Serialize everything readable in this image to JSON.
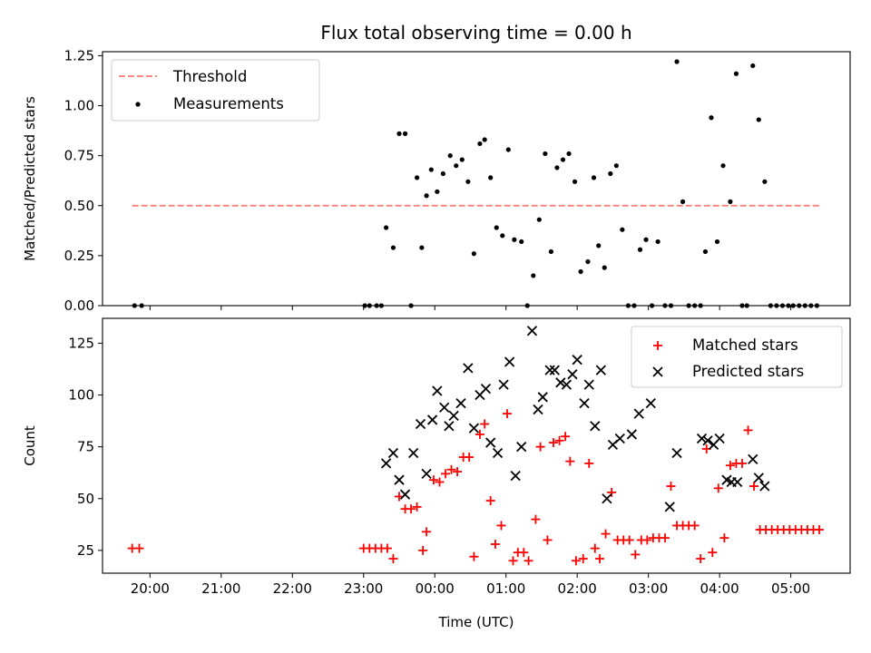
{
  "chart_data": [
    {
      "type": "scatter",
      "title": "Flux total observing time = 0.00 h",
      "xlabel": "",
      "ylabel": "Matched/Predicted stars",
      "ylim": [
        0,
        1.27
      ],
      "yticks": [
        0.0,
        0.25,
        0.5,
        0.75,
        1.0,
        1.25
      ],
      "ytick_labels": [
        "0.00",
        "0.25",
        "0.50",
        "0.75",
        "1.00",
        "1.25"
      ],
      "grid": false,
      "legend": {
        "placement": "upper left",
        "entries": [
          "Threshold",
          "Measurements"
        ]
      },
      "threshold": {
        "name": "Threshold",
        "y": 0.5,
        "x_from": "19:45",
        "x_to": "05:25",
        "color": "#ff7777",
        "style": "dashed"
      },
      "series": [
        {
          "name": "Measurements",
          "color": "#000000",
          "marker": "dot",
          "points": [
            [
              "19:47",
              0
            ],
            [
              "19:53",
              0
            ],
            [
              "23:01",
              0
            ],
            [
              "23:05",
              0
            ],
            [
              "23:11",
              0
            ],
            [
              "23:15",
              0
            ],
            [
              "23:19",
              0.39
            ],
            [
              "23:25",
              0.29
            ],
            [
              "23:30",
              0.86
            ],
            [
              "23:35",
              0.86
            ],
            [
              "23:40",
              0
            ],
            [
              "23:45",
              0.64
            ],
            [
              "23:49",
              0.29
            ],
            [
              "23:53",
              0.55
            ],
            [
              "23:57",
              0.68
            ],
            [
              "00:02",
              0.57
            ],
            [
              "00:07",
              0.66
            ],
            [
              "00:13",
              0.75
            ],
            [
              "00:18",
              0.7
            ],
            [
              "00:23",
              0.73
            ],
            [
              "00:28",
              0.62
            ],
            [
              "00:33",
              0.26
            ],
            [
              "00:38",
              0.81
            ],
            [
              "00:42",
              0.83
            ],
            [
              "00:47",
              0.64
            ],
            [
              "00:52",
              0.39
            ],
            [
              "00:57",
              0.35
            ],
            [
              "01:02",
              0.78
            ],
            [
              "01:07",
              0.33
            ],
            [
              "01:13",
              0.32
            ],
            [
              "01:18",
              0
            ],
            [
              "01:23",
              0.15
            ],
            [
              "01:28",
              0.43
            ],
            [
              "01:33",
              0.76
            ],
            [
              "01:38",
              0.27
            ],
            [
              "01:43",
              0.69
            ],
            [
              "01:48",
              0.73
            ],
            [
              "01:53",
              0.76
            ],
            [
              "01:58",
              0.62
            ],
            [
              "02:03",
              0.17
            ],
            [
              "02:09",
              0.22
            ],
            [
              "02:14",
              0.64
            ],
            [
              "02:18",
              0.3
            ],
            [
              "02:23",
              0.19
            ],
            [
              "02:28",
              0.66
            ],
            [
              "02:33",
              0.7
            ],
            [
              "02:38",
              0.38
            ],
            [
              "02:43",
              0
            ],
            [
              "02:48",
              0
            ],
            [
              "02:53",
              0.28
            ],
            [
              "02:58",
              0.33
            ],
            [
              "03:03",
              0
            ],
            [
              "03:08",
              0.32
            ],
            [
              "03:14",
              0
            ],
            [
              "03:19",
              0
            ],
            [
              "03:24",
              1.22
            ],
            [
              "03:29",
              0.52
            ],
            [
              "03:34",
              0
            ],
            [
              "03:39",
              0
            ],
            [
              "03:44",
              0
            ],
            [
              "03:48",
              0.27
            ],
            [
              "03:53",
              0.94
            ],
            [
              "03:58",
              0.32
            ],
            [
              "04:03",
              0.7
            ],
            [
              "04:09",
              0.52
            ],
            [
              "04:14",
              1.16
            ],
            [
              "04:19",
              0
            ],
            [
              "04:23",
              0
            ],
            [
              "04:28",
              1.2
            ],
            [
              "04:33",
              0.93
            ],
            [
              "04:38",
              0.62
            ],
            [
              "04:43",
              0
            ],
            [
              "04:48",
              0
            ],
            [
              "04:53",
              0
            ],
            [
              "04:58",
              0
            ],
            [
              "05:02",
              0
            ],
            [
              "05:07",
              0
            ],
            [
              "05:12",
              0
            ],
            [
              "05:17",
              0
            ],
            [
              "05:22",
              0
            ]
          ]
        }
      ]
    },
    {
      "type": "scatter",
      "title": "",
      "xlabel": "Time (UTC)",
      "ylabel": "Count",
      "ylim": [
        14,
        137
      ],
      "yticks": [
        25,
        50,
        75,
        100,
        125
      ],
      "ytick_labels": [
        "25",
        "50",
        "75",
        "100",
        "125"
      ],
      "xlim": [
        "19:20",
        "05:50"
      ],
      "xticks": [
        "20:00",
        "21:00",
        "22:00",
        "23:00",
        "00:00",
        "01:00",
        "02:00",
        "03:00",
        "04:00",
        "05:00"
      ],
      "grid": false,
      "legend": {
        "placement": "upper right",
        "entries": [
          "Matched stars",
          "Predicted stars"
        ]
      },
      "series": [
        {
          "name": "Matched stars",
          "color": "#ff0000",
          "marker": "plus",
          "points": [
            [
              "19:45",
              26
            ],
            [
              "19:51",
              26
            ],
            [
              "23:00",
              26
            ],
            [
              "23:05",
              26
            ],
            [
              "23:10",
              26
            ],
            [
              "23:15",
              26
            ],
            [
              "23:20",
              26
            ],
            [
              "23:25",
              21
            ],
            [
              "23:30",
              51
            ],
            [
              "23:35",
              45
            ],
            [
              "23:40",
              45
            ],
            [
              "23:45",
              46
            ],
            [
              "23:50",
              25
            ],
            [
              "23:53",
              34
            ],
            [
              "23:59",
              59
            ],
            [
              "00:04",
              58
            ],
            [
              "00:09",
              62
            ],
            [
              "00:14",
              64
            ],
            [
              "00:19",
              63
            ],
            [
              "00:24",
              70
            ],
            [
              "00:29",
              70
            ],
            [
              "00:33",
              22
            ],
            [
              "00:38",
              81
            ],
            [
              "00:42",
              86
            ],
            [
              "00:47",
              49
            ],
            [
              "00:51",
              28
            ],
            [
              "00:56",
              37
            ],
            [
              "01:01",
              91
            ],
            [
              "01:06",
              20
            ],
            [
              "01:10",
              24
            ],
            [
              "01:15",
              24
            ],
            [
              "01:19",
              20
            ],
            [
              "01:25",
              40
            ],
            [
              "01:29",
              75
            ],
            [
              "01:35",
              30
            ],
            [
              "01:40",
              77
            ],
            [
              "01:45",
              78
            ],
            [
              "01:50",
              80
            ],
            [
              "01:54",
              68
            ],
            [
              "01:59",
              20
            ],
            [
              "02:05",
              21
            ],
            [
              "02:10",
              67
            ],
            [
              "02:15",
              26
            ],
            [
              "02:19",
              21
            ],
            [
              "02:24",
              33
            ],
            [
              "02:29",
              53
            ],
            [
              "02:34",
              30
            ],
            [
              "02:39",
              30
            ],
            [
              "02:44",
              30
            ],
            [
              "02:49",
              23
            ],
            [
              "02:54",
              30
            ],
            [
              "02:59",
              30
            ],
            [
              "03:04",
              31
            ],
            [
              "03:09",
              31
            ],
            [
              "03:14",
              31
            ],
            [
              "03:19",
              56
            ],
            [
              "03:24",
              37
            ],
            [
              "03:29",
              37
            ],
            [
              "03:34",
              37
            ],
            [
              "03:39",
              37
            ],
            [
              "03:44",
              21
            ],
            [
              "03:49",
              74
            ],
            [
              "03:54",
              24
            ],
            [
              "03:59",
              55
            ],
            [
              "04:04",
              31
            ],
            [
              "04:09",
              66
            ],
            [
              "04:14",
              67
            ],
            [
              "04:19",
              67
            ],
            [
              "04:24",
              83
            ],
            [
              "04:29",
              56
            ],
            [
              "04:34",
              35
            ],
            [
              "04:39",
              35
            ],
            [
              "04:44",
              35
            ],
            [
              "04:49",
              35
            ],
            [
              "04:54",
              35
            ],
            [
              "04:59",
              35
            ],
            [
              "05:04",
              35
            ],
            [
              "05:09",
              35
            ],
            [
              "05:14",
              35
            ],
            [
              "05:19",
              35
            ],
            [
              "05:24",
              35
            ]
          ]
        },
        {
          "name": "Predicted stars",
          "color": "#000000",
          "marker": "x",
          "points": [
            [
              "23:19",
              67
            ],
            [
              "23:25",
              72
            ],
            [
              "23:30",
              59
            ],
            [
              "23:35",
              52
            ],
            [
              "23:42",
              72
            ],
            [
              "23:48",
              86
            ],
            [
              "23:53",
              62
            ],
            [
              "23:58",
              88
            ],
            [
              "00:02",
              102
            ],
            [
              "00:08",
              94
            ],
            [
              "00:12",
              85
            ],
            [
              "00:16",
              90
            ],
            [
              "00:22",
              96
            ],
            [
              "00:28",
              113
            ],
            [
              "00:33",
              84
            ],
            [
              "00:38",
              100
            ],
            [
              "00:43",
              103
            ],
            [
              "00:47",
              77
            ],
            [
              "00:53",
              72
            ],
            [
              "00:58",
              105
            ],
            [
              "01:03",
              116
            ],
            [
              "01:08",
              61
            ],
            [
              "01:13",
              75
            ],
            [
              "01:22",
              131
            ],
            [
              "01:27",
              93
            ],
            [
              "01:31",
              99
            ],
            [
              "01:37",
              112
            ],
            [
              "01:41",
              112
            ],
            [
              "01:46",
              106
            ],
            [
              "01:51",
              105
            ],
            [
              "01:56",
              110
            ],
            [
              "02:00",
              117
            ],
            [
              "02:06",
              96
            ],
            [
              "02:10",
              105
            ],
            [
              "02:15",
              85
            ],
            [
              "02:20",
              112
            ],
            [
              "02:25",
              50
            ],
            [
              "02:30",
              76
            ],
            [
              "02:36",
              79
            ],
            [
              "02:46",
              81
            ],
            [
              "02:52",
              91
            ],
            [
              "03:02",
              96
            ],
            [
              "03:18",
              46
            ],
            [
              "03:24",
              72
            ],
            [
              "03:45",
              79
            ],
            [
              "03:50",
              78
            ],
            [
              "03:55",
              76
            ],
            [
              "04:00",
              79
            ],
            [
              "04:06",
              59
            ],
            [
              "04:10",
              58
            ],
            [
              "04:15",
              58
            ],
            [
              "04:28",
              69
            ],
            [
              "04:33",
              60
            ],
            [
              "04:38",
              56
            ]
          ]
        }
      ]
    }
  ]
}
